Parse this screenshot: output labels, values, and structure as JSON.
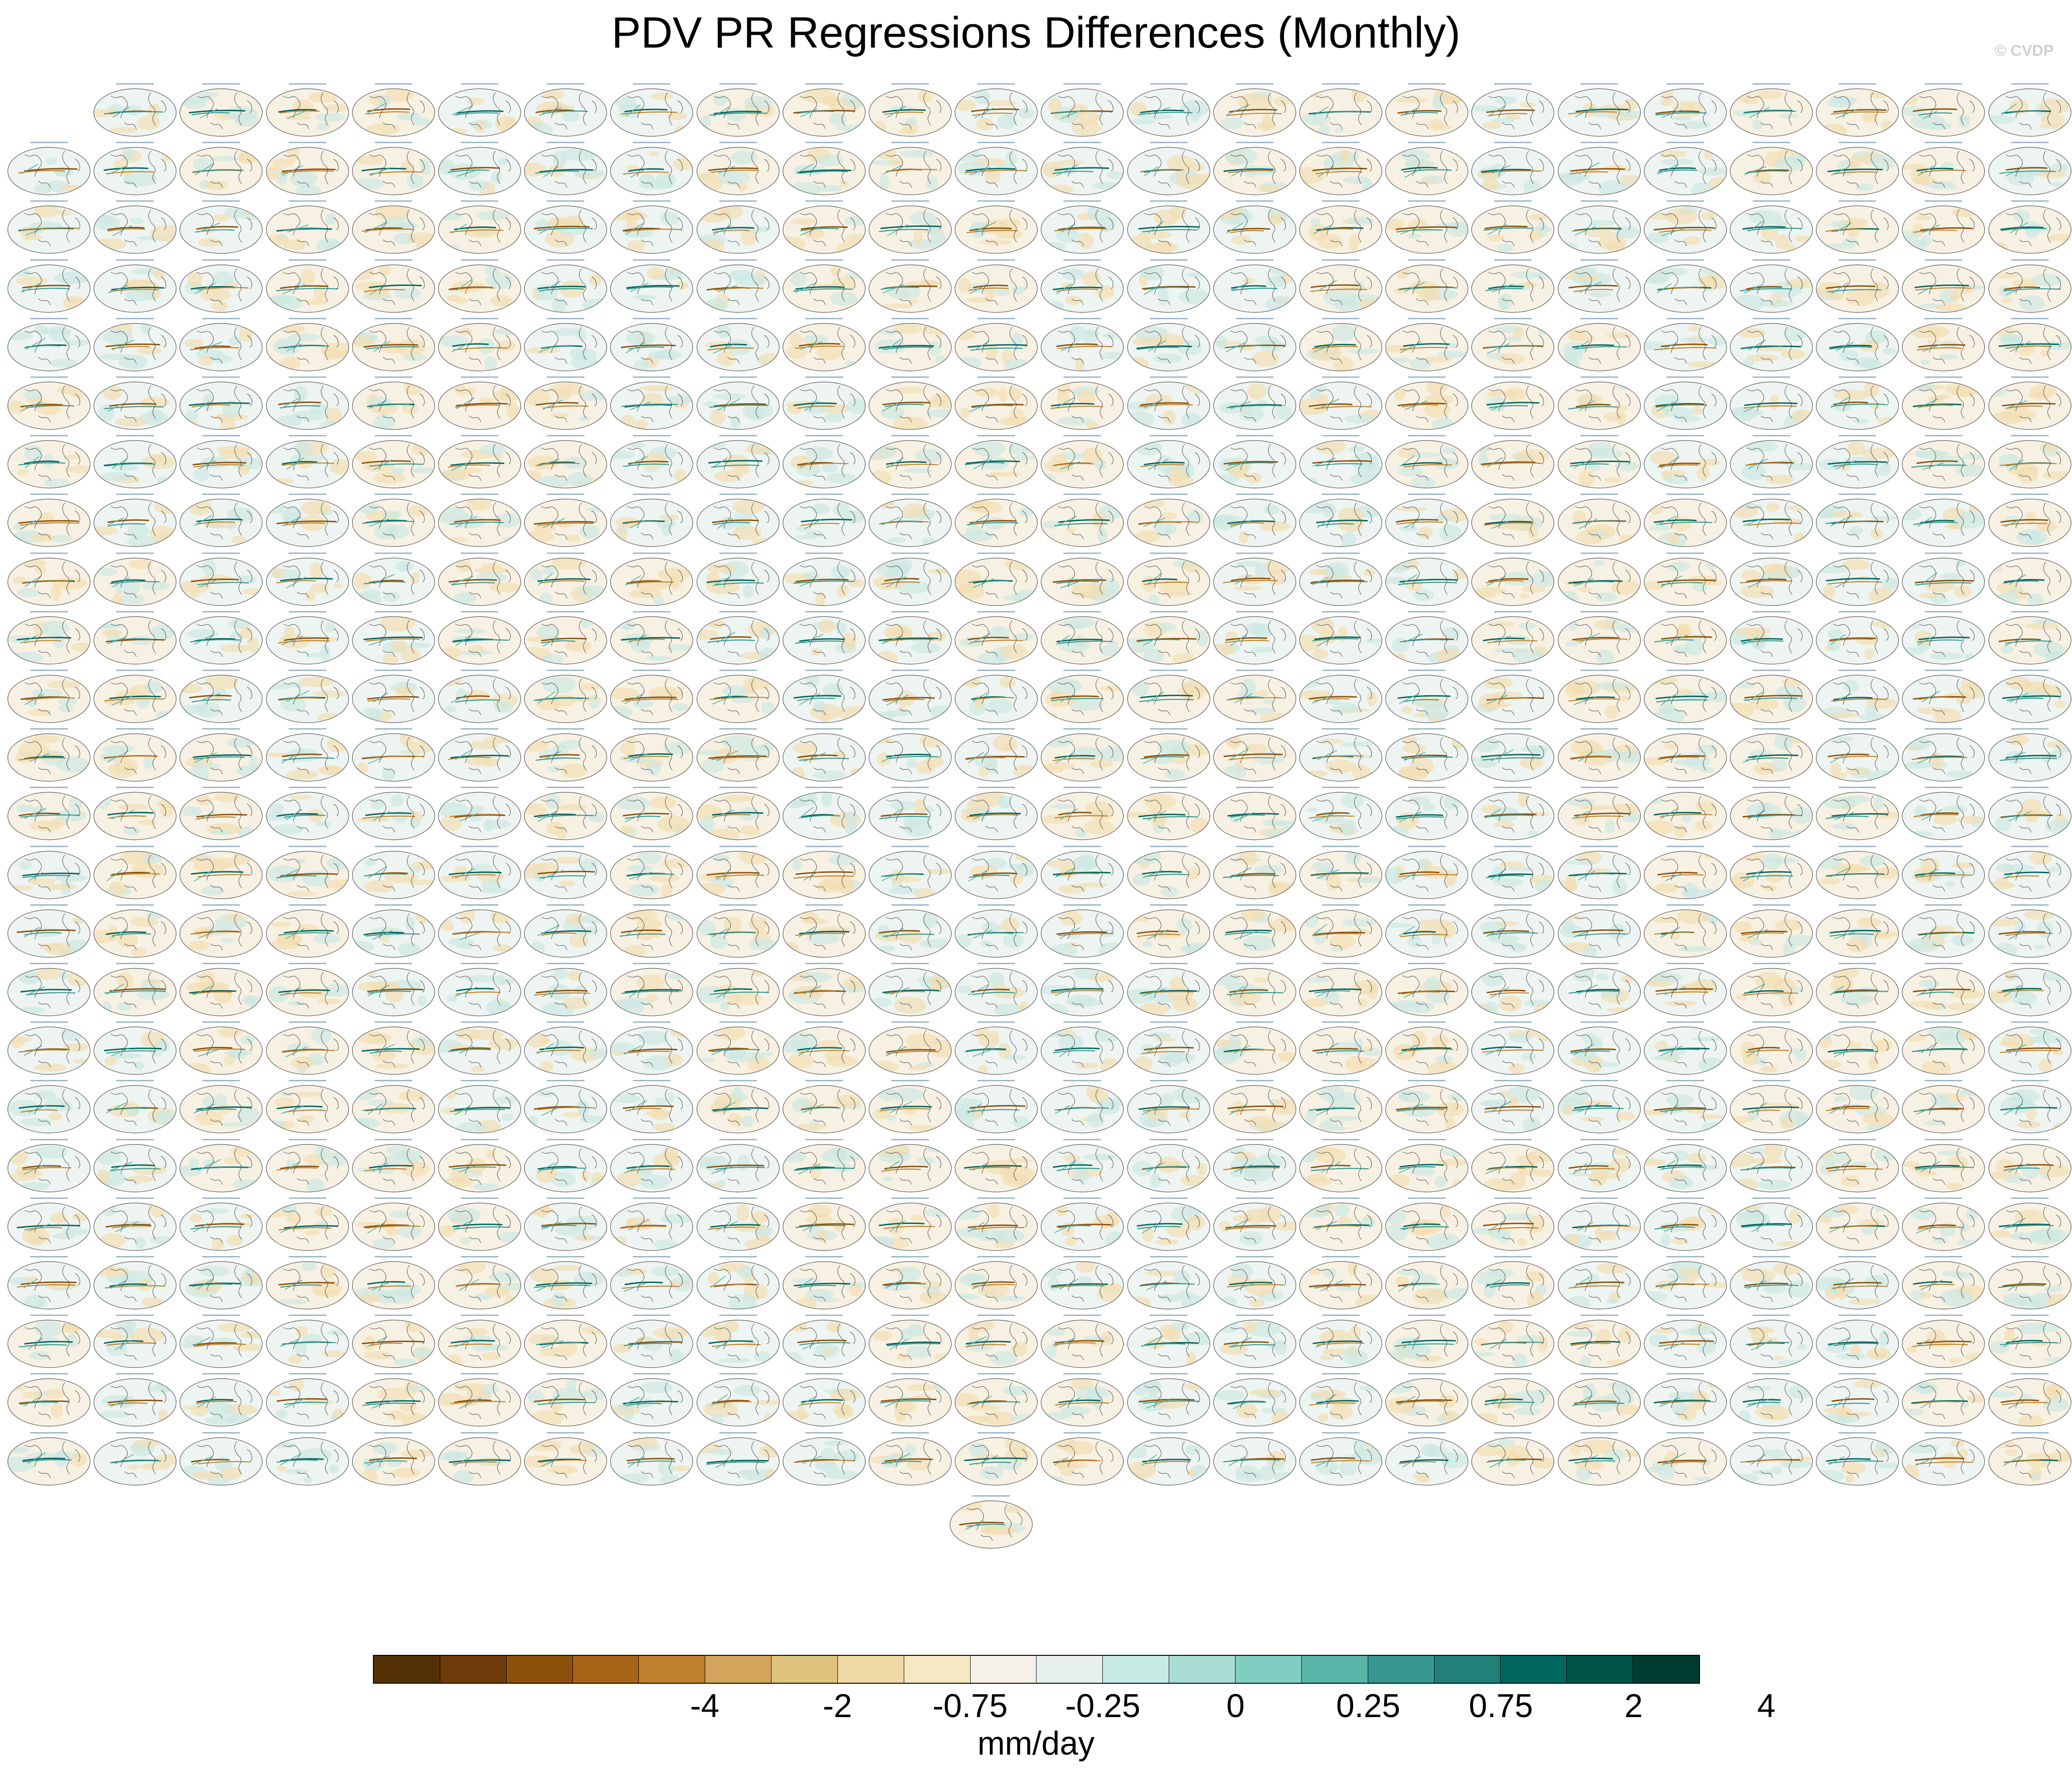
{
  "title": "PDV PR Regressions Differences (Monthly)",
  "watermark": "© CVDP",
  "chart_data": {
    "type": "heatmap",
    "title": "PDV PR Regressions Differences (Monthly)",
    "description_kind": "panel grid of global maps (Robinson-like projection)",
    "panel_grid": {
      "columns": 24,
      "rows_full": 23,
      "first_row_panels": 23,
      "extra_panels_bottom": 1,
      "total_panels": 577
    },
    "colorbar": {
      "units": "mm/day",
      "tick_labels": [
        "-4",
        "-2",
        "-0.75",
        "-0.25",
        "0",
        "0.25",
        "0.75",
        "2",
        "4"
      ],
      "tick_boundaries": [
        5,
        7,
        9,
        11,
        13,
        15,
        17,
        19,
        21
      ],
      "colors": [
        "#543005",
        "#6e3c0a",
        "#8c510a",
        "#a86418",
        "#bf812d",
        "#d2a45c",
        "#dfc27d",
        "#efd8a6",
        "#f6e8c3",
        "#f5f0e8",
        "#e8f0ee",
        "#c7eae5",
        "#a9ddd4",
        "#80cdc1",
        "#5ab4a8",
        "#35978f",
        "#1f8177",
        "#01665e",
        "#005447",
        "#003c30"
      ]
    }
  },
  "units_label": "mm/day"
}
